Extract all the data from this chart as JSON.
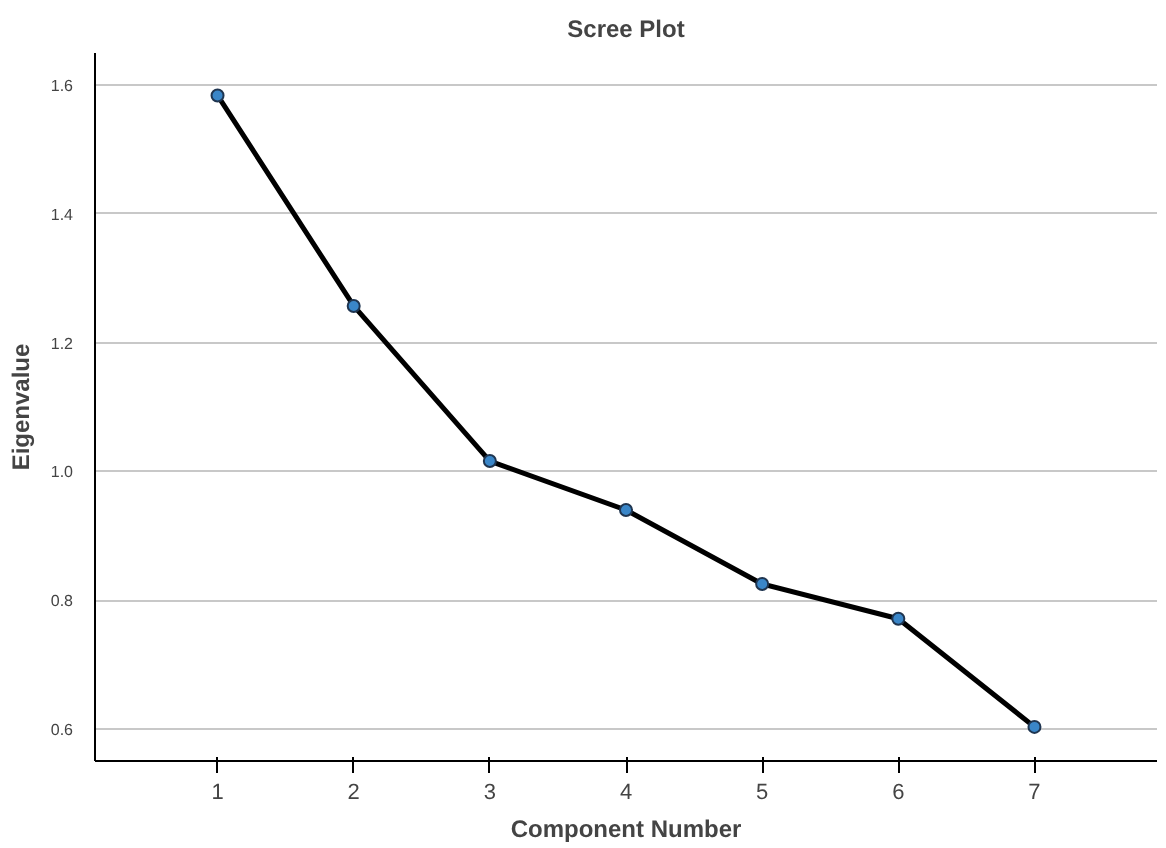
{
  "chart_data": {
    "type": "line",
    "title": "Scree Plot",
    "xlabel": "Component Number",
    "ylabel": "Eigenvalue",
    "x": [
      1,
      2,
      3,
      4,
      5,
      6,
      7
    ],
    "series": [
      {
        "color": "#000000",
        "values": [
          1.584,
          1.257,
          1.016,
          0.94,
          0.825,
          0.771,
          0.603
        ]
      }
    ],
    "xlim": [
      0.1,
      7.9
    ],
    "xticks": [
      1,
      2,
      3,
      4,
      5,
      6,
      7
    ],
    "ylim": [
      0.55,
      1.65
    ],
    "yticks": [
      {
        "value": 0.6,
        "label": "0.6"
      },
      {
        "value": 0.8,
        "label": "0.8"
      },
      {
        "value": 1.0,
        "label": "1.0"
      },
      {
        "value": 1.2,
        "label": "1.2"
      },
      {
        "value": 1.4,
        "label": "1.4"
      },
      {
        "value": 1.6,
        "label": "1.6"
      }
    ],
    "grid": "y",
    "marker": "circle",
    "line_style": "solid"
  }
}
